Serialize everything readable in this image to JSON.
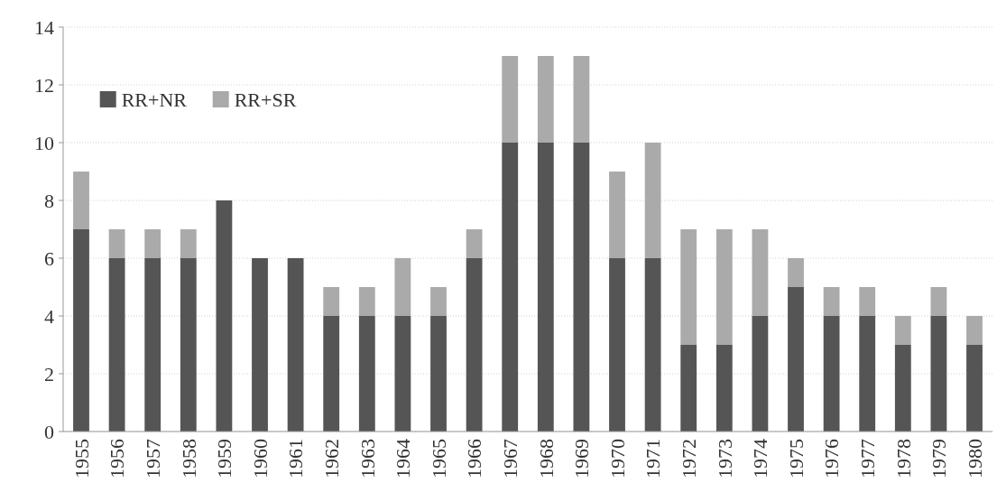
{
  "chart_data": {
    "type": "bar",
    "stacked": true,
    "categories": [
      "1955",
      "1956",
      "1957",
      "1958",
      "1959",
      "1960",
      "1961",
      "1962",
      "1963",
      "1964",
      "1965",
      "1966",
      "1967",
      "1968",
      "1969",
      "1970",
      "1971",
      "1972",
      "1973",
      "1974",
      "1975",
      "1976",
      "1977",
      "1978",
      "1979",
      "1980"
    ],
    "series": [
      {
        "name": "RR+NR",
        "color": "#555555",
        "values": [
          7,
          6,
          6,
          6,
          8,
          6,
          6,
          4,
          4,
          4,
          4,
          6,
          10,
          10,
          10,
          6,
          6,
          3,
          3,
          4,
          5,
          4,
          4,
          3,
          4,
          3
        ]
      },
      {
        "name": "RR+SR",
        "color": "#aaaaaa",
        "values": [
          2,
          1,
          1,
          1,
          0,
          0,
          0,
          1,
          1,
          2,
          1,
          1,
          3,
          3,
          3,
          3,
          4,
          4,
          4,
          3,
          1,
          1,
          1,
          1,
          1,
          1
        ]
      }
    ],
    "ylim": [
      0,
      14
    ],
    "yticks": [
      0,
      2,
      4,
      6,
      8,
      10,
      12,
      14
    ],
    "grid": "y",
    "legend": "top left"
  }
}
